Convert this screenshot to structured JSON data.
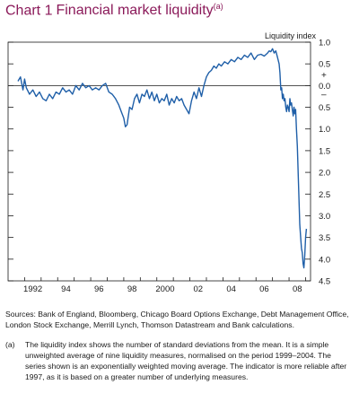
{
  "title": {
    "number": "Chart 1",
    "text": "Financial market liquidity",
    "footnote_mark": "(a)"
  },
  "chart_data": {
    "type": "line",
    "ylabel": "Liquidity index",
    "y_axis_position": "right",
    "y_inverted": true,
    "ylim": [
      -1.0,
      4.5
    ],
    "y_tick_values": [
      -1.0,
      -0.5,
      0.0,
      0.5,
      1.0,
      1.5,
      2.0,
      2.5,
      3.0,
      3.5,
      4.0,
      4.5
    ],
    "y_tick_labels": [
      "1.0",
      "0.5",
      "0.0",
      "0.5",
      "1.0",
      "1.5",
      "2.0",
      "2.5",
      "3.0",
      "3.5",
      "4.0",
      "4.5"
    ],
    "sign_markers": [
      "+",
      "–"
    ],
    "x_tick_labels": [
      "1992",
      "94",
      "96",
      "98",
      "2000",
      "02",
      "04",
      "06",
      "08"
    ],
    "x_tick_years": [
      1992,
      1994,
      1996,
      1998,
      2000,
      2002,
      2004,
      2006,
      2008
    ],
    "xlim": [
      1991.0,
      2009.3
    ],
    "reference_line": 0.0,
    "grid": false,
    "series": [
      {
        "color": "#1f5fa8",
        "x": [
          1991.6,
          1991.75,
          1991.9,
          1992.0,
          1992.1,
          1992.3,
          1992.5,
          1992.7,
          1992.9,
          1993.1,
          1993.3,
          1993.5,
          1993.7,
          1993.9,
          1994.1,
          1994.3,
          1994.5,
          1994.7,
          1994.9,
          1995.1,
          1995.3,
          1995.5,
          1995.7,
          1995.9,
          1996.1,
          1996.3,
          1996.5,
          1996.7,
          1996.9,
          1997.1,
          1997.3,
          1997.5,
          1997.7,
          1997.85,
          1998.0,
          1998.1,
          1998.2,
          1998.35,
          1998.5,
          1998.65,
          1998.8,
          1998.95,
          1999.1,
          1999.25,
          1999.4,
          1999.55,
          1999.7,
          1999.85,
          2000.0,
          2000.15,
          2000.3,
          2000.45,
          2000.6,
          2000.75,
          2000.9,
          2001.05,
          2001.2,
          2001.35,
          2001.5,
          2001.65,
          2001.8,
          2001.95,
          2002.1,
          2002.25,
          2002.4,
          2002.55,
          2002.7,
          2002.85,
          2003.0,
          2003.15,
          2003.3,
          2003.45,
          2003.6,
          2003.75,
          2003.9,
          2004.1,
          2004.3,
          2004.5,
          2004.7,
          2004.9,
          2005.1,
          2005.3,
          2005.5,
          2005.7,
          2005.9,
          2006.1,
          2006.3,
          2006.5,
          2006.7,
          2006.8,
          2006.9,
          2007.0,
          2007.1,
          2007.2,
          2007.3,
          2007.4,
          2007.45,
          2007.5,
          2007.55,
          2007.6,
          2007.65,
          2007.7,
          2007.75,
          2007.8,
          2007.85,
          2007.9,
          2007.95,
          2008.0,
          2008.05,
          2008.1,
          2008.15,
          2008.2,
          2008.25,
          2008.3,
          2008.35,
          2008.4,
          2008.45,
          2008.5,
          2008.55,
          2008.6,
          2008.65,
          2008.7,
          2008.75,
          2008.8,
          2008.85,
          2008.9,
          2008.95,
          2009.0,
          2009.05
        ],
        "y": [
          -0.1,
          -0.2,
          0.1,
          -0.15,
          0.05,
          0.2,
          0.1,
          0.25,
          0.15,
          0.3,
          0.35,
          0.2,
          0.3,
          0.15,
          0.2,
          0.05,
          0.15,
          0.1,
          0.2,
          0.0,
          0.1,
          -0.05,
          0.05,
          0.0,
          0.1,
          0.05,
          0.1,
          0.0,
          -0.05,
          0.15,
          0.2,
          0.3,
          0.45,
          0.6,
          0.75,
          0.95,
          0.9,
          0.5,
          0.55,
          0.3,
          0.2,
          0.4,
          0.2,
          0.25,
          0.1,
          0.3,
          0.15,
          0.35,
          0.2,
          0.4,
          0.3,
          0.35,
          0.2,
          0.45,
          0.3,
          0.4,
          0.25,
          0.35,
          0.3,
          0.45,
          0.55,
          0.65,
          0.35,
          0.15,
          0.3,
          0.05,
          0.25,
          0.0,
          -0.2,
          -0.3,
          -0.35,
          -0.45,
          -0.4,
          -0.5,
          -0.45,
          -0.55,
          -0.5,
          -0.6,
          -0.55,
          -0.65,
          -0.6,
          -0.7,
          -0.65,
          -0.75,
          -0.6,
          -0.7,
          -0.72,
          -0.68,
          -0.75,
          -0.8,
          -0.78,
          -0.85,
          -0.75,
          -0.8,
          -0.65,
          -0.5,
          -0.3,
          0.1,
          0.05,
          0.3,
          0.2,
          0.35,
          0.3,
          0.5,
          0.6,
          0.45,
          0.5,
          0.6,
          0.3,
          0.45,
          0.4,
          0.55,
          0.7,
          0.5,
          0.65,
          0.55,
          1.0,
          1.4,
          2.0,
          2.6,
          3.2,
          3.5,
          3.75,
          3.85,
          4.1,
          4.2,
          3.9,
          3.5,
          3.3
        ]
      }
    ]
  },
  "sources": "Sources: Bank of England, Bloomberg, Chicago Board Options Exchange, Debt Management Office, London Stock Exchange, Merrill Lynch, Thomson Datastream and Bank calculations.",
  "note": {
    "mark": "(a)",
    "text": "The liquidity index shows the number of standard deviations from the mean. It is a simple unweighted average of nine liquidity measures, normalised on the period 1999–2004. The series shown is an exponentially weighted moving average. The indicator is more reliable after 1997, as it is based on a greater number of underlying measures."
  }
}
